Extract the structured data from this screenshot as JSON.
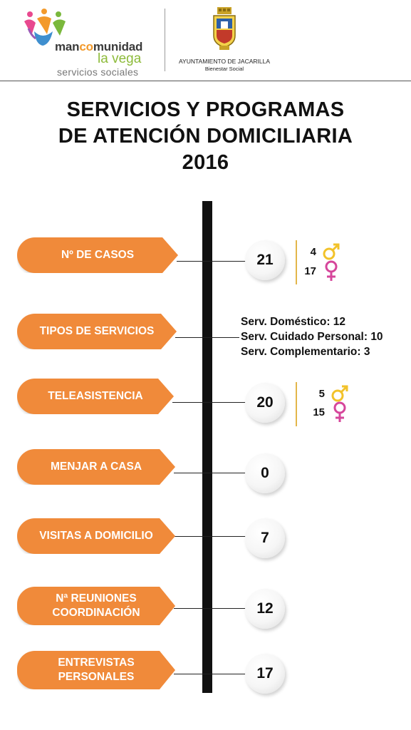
{
  "header": {
    "left_logo": {
      "line1": "mancomunidad",
      "line2": "la vega",
      "line3": "servicios sociales"
    },
    "right_logo": {
      "name": "AYUNTAMIENTO DE JACARILLA",
      "subtitle": "Bienestar Social",
      "icon": "coat-of-arms"
    }
  },
  "title": {
    "line1": "SERVICIOS Y PROGRAMAS",
    "line2": "DE ATENCIÓN DOMICILIARIA",
    "line3": "2016"
  },
  "colors": {
    "accent_orange": "#f08a3a",
    "male_symbol": "#f2c22a",
    "female_symbol": "#d6469b",
    "gold_divider": "#e3b64a"
  },
  "items": [
    {
      "label_lines": [
        "Nº DE CASOS"
      ],
      "value": "21",
      "male": "4",
      "female": "17"
    },
    {
      "label_lines": [
        "TIPOS DE SERVICIOS"
      ],
      "services": [
        "Serv. Doméstico: 12",
        "Serv. Cuidado Personal: 10",
        "Serv. Complementario: 3"
      ]
    },
    {
      "label_lines": [
        "TELEASISTENCIA"
      ],
      "value": "20",
      "male": "5",
      "female": "15"
    },
    {
      "label_lines": [
        "MENJAR A CASA"
      ],
      "value": "0"
    },
    {
      "label_lines": [
        "VISITAS A DOMICILIO"
      ],
      "value": "7"
    },
    {
      "label_lines": [
        "Nª REUNIONES",
        "COORDINACIÓN"
      ],
      "value": "12"
    },
    {
      "label_lines": [
        "ENTREVISTAS",
        "PERSONALES"
      ],
      "value": "17"
    }
  ]
}
